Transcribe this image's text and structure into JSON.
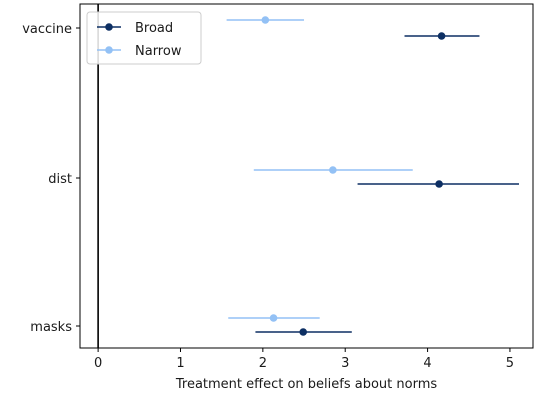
{
  "chart_data": {
    "type": "scatter",
    "subtype": "coefficient-plot-with-error-bars",
    "orientation": "horizontal",
    "title": "",
    "xlabel": "Treatment effect on beliefs about norms",
    "ylabel": "",
    "xlim": [
      -0.22,
      5.28
    ],
    "xticks": [
      0,
      1,
      2,
      3,
      4,
      5
    ],
    "categories": [
      "vaccine",
      "dist",
      "masks"
    ],
    "reference_line_x": 0,
    "grid": false,
    "legend_position": "top-left",
    "series": [
      {
        "name": "Broad",
        "color": "#0d2f63",
        "points": [
          {
            "category": "vaccine",
            "estimate": 4.17,
            "ci_low": 3.72,
            "ci_high": 4.63
          },
          {
            "category": "dist",
            "estimate": 4.14,
            "ci_low": 3.15,
            "ci_high": 5.11
          },
          {
            "category": "masks",
            "estimate": 2.49,
            "ci_low": 1.91,
            "ci_high": 3.08
          }
        ]
      },
      {
        "name": "Narrow",
        "color": "#93c1f5",
        "points": [
          {
            "category": "vaccine",
            "estimate": 2.03,
            "ci_low": 1.56,
            "ci_high": 2.5
          },
          {
            "category": "dist",
            "estimate": 2.85,
            "ci_low": 1.89,
            "ci_high": 3.82
          },
          {
            "category": "masks",
            "estimate": 2.13,
            "ci_low": 1.58,
            "ci_high": 2.69
          }
        ]
      }
    ]
  }
}
